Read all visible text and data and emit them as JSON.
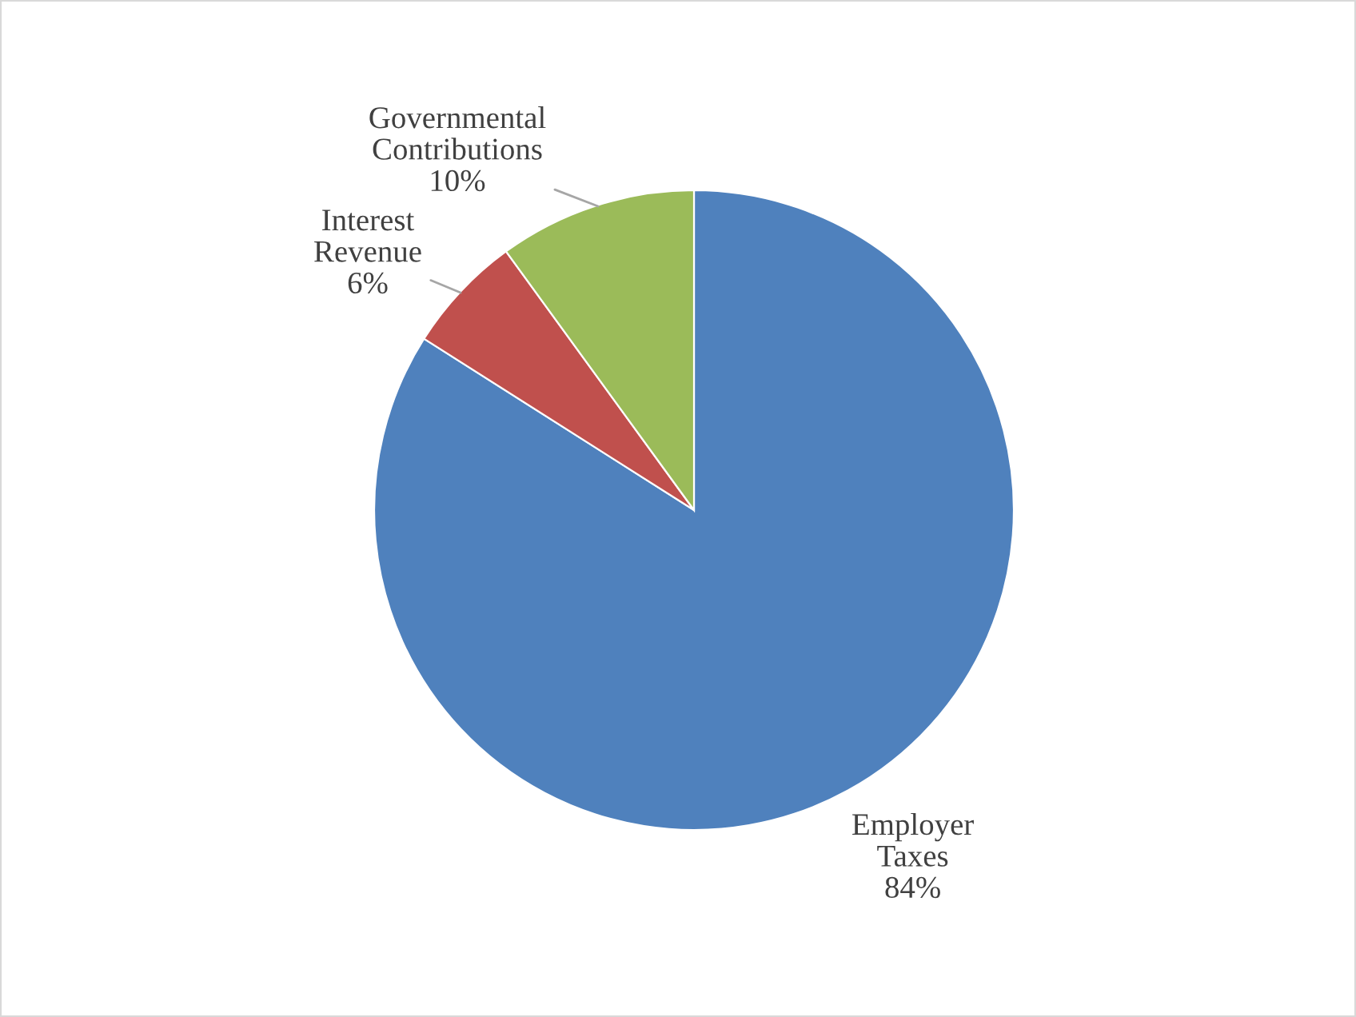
{
  "chart_data": {
    "type": "pie",
    "categories": [
      "Employer Taxes",
      "Interest Revenue",
      "Governmental Contributions"
    ],
    "values": [
      84,
      6,
      10
    ],
    "colors": [
      "#4f81bd",
      "#c0504d",
      "#9bbb59"
    ],
    "value_labels": [
      "84%",
      "6%",
      "10%"
    ]
  }
}
